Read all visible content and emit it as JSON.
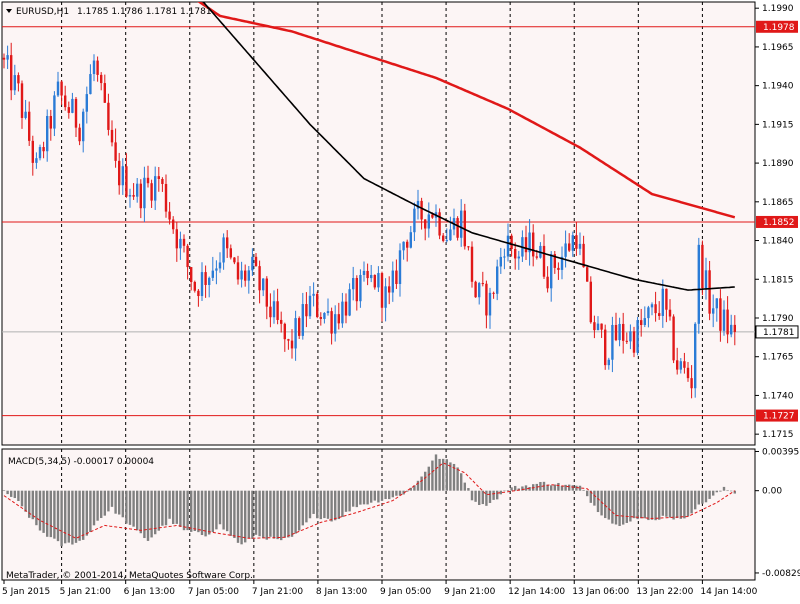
{
  "header": {
    "symbol": "EURUSD,H1",
    "ohlc": "1.1785 1.1786 1.1781 1.1781"
  },
  "copyright": "MetaTrader, © 2001-2014, MetaQuotes Software Corp.",
  "colors": {
    "background": "#fcf5f5",
    "bull": "#2a7bd6",
    "bear": "#e01818",
    "ma_slow": "#e01818",
    "ma_fast": "#000000",
    "hline": "#e01818",
    "macd_hist": "#808080",
    "macd_signal": "#e01818"
  },
  "chart_data": [
    {
      "type": "candlestick",
      "title": "EURUSD,H1",
      "x_ticks": [
        "5 Jan 2015",
        "5 Jan 21:00",
        "6 Jan 13:00",
        "7 Jan 05:00",
        "7 Jan 21:00",
        "8 Jan 13:00",
        "9 Jan 05:00",
        "9 Jan 21:00",
        "12 Jan 14:00",
        "13 Jan 06:00",
        "13 Jan 22:00",
        "14 Jan 14:00"
      ],
      "y_ticks": [
        "1.1990",
        "1.1965",
        "1.1940",
        "1.1915",
        "1.1890",
        "1.1865",
        "1.1840",
        "1.1815",
        "1.1790",
        "1.1765",
        "1.1740",
        "1.1715"
      ],
      "ylim": [
        1.1708,
        1.1994
      ],
      "current_price": "1.1781",
      "horizontal_levels": [
        {
          "value": 1.1978,
          "label": "1.1978"
        },
        {
          "value": 1.1852,
          "label": "1.1852"
        },
        {
          "value": 1.1727,
          "label": "1.1727"
        }
      ],
      "price_anchors": [
        [
          0,
          1.1958
        ],
        [
          5,
          1.1935
        ],
        [
          10,
          1.1885
        ],
        [
          16,
          1.1935
        ],
        [
          22,
          1.1915
        ],
        [
          26,
          1.1955
        ],
        [
          32,
          1.1885
        ],
        [
          38,
          1.187
        ],
        [
          44,
          1.188
        ],
        [
          48,
          1.185
        ],
        [
          54,
          1.181
        ],
        [
          58,
          1.182
        ],
        [
          62,
          1.1835
        ],
        [
          66,
          1.1815
        ],
        [
          70,
          1.182
        ],
        [
          76,
          1.179
        ],
        [
          80,
          1.177
        ],
        [
          86,
          1.18
        ],
        [
          92,
          1.179
        ],
        [
          98,
          1.1805
        ],
        [
          104,
          1.1815
        ],
        [
          108,
          1.18
        ],
        [
          112,
          1.184
        ],
        [
          116,
          1.1855
        ],
        [
          120,
          1.186
        ],
        [
          124,
          1.1845
        ],
        [
          128,
          1.1855
        ],
        [
          132,
          1.1805
        ],
        [
          136,
          1.18
        ],
        [
          140,
          1.184
        ],
        [
          144,
          1.183
        ],
        [
          148,
          1.1838
        ],
        [
          152,
          1.182
        ],
        [
          156,
          1.183
        ],
        [
          160,
          1.1845
        ],
        [
          164,
          1.179
        ],
        [
          168,
          1.177
        ],
        [
          172,
          1.178
        ],
        [
          176,
          1.1778
        ],
        [
          180,
          1.179
        ],
        [
          184,
          1.18
        ],
        [
          188,
          1.176
        ],
        [
          192,
          1.175
        ],
        [
          194,
          1.183
        ],
        [
          197,
          1.18
        ],
        [
          200,
          1.179
        ],
        [
          203,
          1.1781
        ]
      ],
      "ma_slow": [
        [
          48,
          1.2004
        ],
        [
          60,
          1.1985
        ],
        [
          80,
          1.1975
        ],
        [
          100,
          1.196
        ],
        [
          120,
          1.1945
        ],
        [
          140,
          1.1925
        ],
        [
          160,
          1.19
        ],
        [
          180,
          1.187
        ],
        [
          203,
          1.1855
        ]
      ],
      "ma_fast": [
        [
          55,
          1.1995
        ],
        [
          70,
          1.1955
        ],
        [
          85,
          1.1915
        ],
        [
          100,
          1.188
        ],
        [
          115,
          1.1862
        ],
        [
          130,
          1.1845
        ],
        [
          145,
          1.1835
        ],
        [
          160,
          1.1825
        ],
        [
          175,
          1.1815
        ],
        [
          190,
          1.1808
        ],
        [
          203,
          1.181
        ]
      ]
    },
    {
      "type": "bar",
      "title": "MACD(5,34,5) -0.00017 0.00004",
      "y_ticks": [
        "0.00395",
        "0.00",
        "-0.00829"
      ],
      "ylim": [
        -0.009,
        0.0042
      ],
      "hist_anchors": [
        [
          0,
          0.0
        ],
        [
          4,
          -0.0012
        ],
        [
          10,
          -0.004
        ],
        [
          16,
          -0.0055
        ],
        [
          22,
          -0.005
        ],
        [
          26,
          -0.003
        ],
        [
          30,
          -0.0018
        ],
        [
          35,
          -0.0035
        ],
        [
          40,
          -0.005
        ],
        [
          46,
          -0.003
        ],
        [
          50,
          -0.004
        ],
        [
          56,
          -0.0045
        ],
        [
          60,
          -0.0035
        ],
        [
          66,
          -0.0055
        ],
        [
          70,
          -0.0045
        ],
        [
          76,
          -0.005
        ],
        [
          80,
          -0.0048
        ],
        [
          86,
          -0.0025
        ],
        [
          92,
          -0.003
        ],
        [
          98,
          -0.0015
        ],
        [
          104,
          -0.001
        ],
        [
          110,
          -0.0005
        ],
        [
          114,
          0.0005
        ],
        [
          118,
          0.0025
        ],
        [
          120,
          0.0035
        ],
        [
          123,
          0.003
        ],
        [
          126,
          0.0025
        ],
        [
          128,
          0.001
        ],
        [
          130,
          -0.0008
        ],
        [
          133,
          -0.0015
        ],
        [
          136,
          -0.001
        ],
        [
          140,
          0.0002
        ],
        [
          145,
          0.0005
        ],
        [
          150,
          0.0008
        ],
        [
          155,
          0.0006
        ],
        [
          160,
          0.0004
        ],
        [
          165,
          -0.002
        ],
        [
          170,
          -0.0035
        ],
        [
          175,
          -0.0028
        ],
        [
          180,
          -0.003
        ],
        [
          184,
          -0.0025
        ],
        [
          188,
          -0.003
        ],
        [
          192,
          -0.0018
        ],
        [
          196,
          -0.0008
        ],
        [
          200,
          0.0002
        ],
        [
          203,
          -0.0002
        ]
      ],
      "signal_anchors": [
        [
          0,
          -0.0005
        ],
        [
          10,
          -0.003
        ],
        [
          20,
          -0.0048
        ],
        [
          28,
          -0.0035
        ],
        [
          38,
          -0.004
        ],
        [
          48,
          -0.0035
        ],
        [
          58,
          -0.0042
        ],
        [
          68,
          -0.0048
        ],
        [
          78,
          -0.0047
        ],
        [
          88,
          -0.0032
        ],
        [
          98,
          -0.0022
        ],
        [
          108,
          -0.001
        ],
        [
          116,
          0.001
        ],
        [
          122,
          0.0028
        ],
        [
          128,
          0.0018
        ],
        [
          134,
          -0.0004
        ],
        [
          142,
          0.0
        ],
        [
          152,
          0.0006
        ],
        [
          162,
          0.0002
        ],
        [
          170,
          -0.0025
        ],
        [
          180,
          -0.0028
        ],
        [
          190,
          -0.0026
        ],
        [
          198,
          -0.0012
        ],
        [
          203,
          0.0
        ]
      ]
    }
  ]
}
